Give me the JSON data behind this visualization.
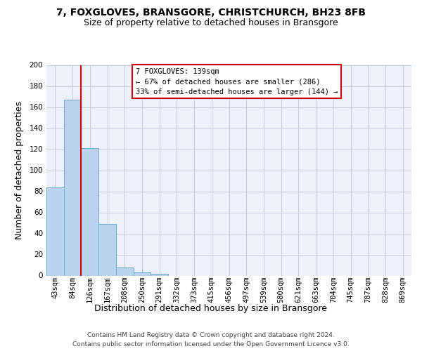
{
  "title": "7, FOXGLOVES, BRANSGORE, CHRISTCHURCH, BH23 8FB",
  "subtitle": "Size of property relative to detached houses in Bransgore",
  "xlabel": "Distribution of detached houses by size in Bransgore",
  "ylabel": "Number of detached properties",
  "bar_labels": [
    "43sqm",
    "84sqm",
    "126sqm",
    "167sqm",
    "208sqm",
    "250sqm",
    "291sqm",
    "332sqm",
    "373sqm",
    "415sqm",
    "456sqm",
    "497sqm",
    "539sqm",
    "580sqm",
    "621sqm",
    "663sqm",
    "704sqm",
    "745sqm",
    "787sqm",
    "828sqm",
    "869sqm"
  ],
  "bar_values": [
    84,
    167,
    121,
    49,
    8,
    3,
    2,
    0,
    0,
    0,
    0,
    0,
    0,
    0,
    0,
    0,
    0,
    0,
    0,
    0,
    0
  ],
  "bar_color": "#bad4ee",
  "bar_edge_color": "#6aaad4",
  "vline_color": "#cc0000",
  "vline_bar_index": 2,
  "ylim_max": 200,
  "yticks": [
    0,
    20,
    40,
    60,
    80,
    100,
    120,
    140,
    160,
    180,
    200
  ],
  "annotation_text_line1": "7 FOXGLOVES: 139sqm",
  "annotation_text_line2": "← 67% of detached houses are smaller (286)",
  "annotation_text_line3": "33% of semi-detached houses are larger (144) →",
  "ann_box_edge_color": "#cc0000",
  "footer_line1": "Contains HM Land Registry data © Crown copyright and database right 2024.",
  "footer_line2": "Contains public sector information licensed under the Open Government Licence v3.0.",
  "bg_color": "#edf1fb",
  "grid_color": "#c5cce6",
  "title_fontsize": 10,
  "subtitle_fontsize": 9,
  "ylabel_fontsize": 9,
  "xlabel_fontsize": 9,
  "tick_fontsize": 7.5,
  "ann_fontsize": 7.5,
  "footer_fontsize": 6.5
}
